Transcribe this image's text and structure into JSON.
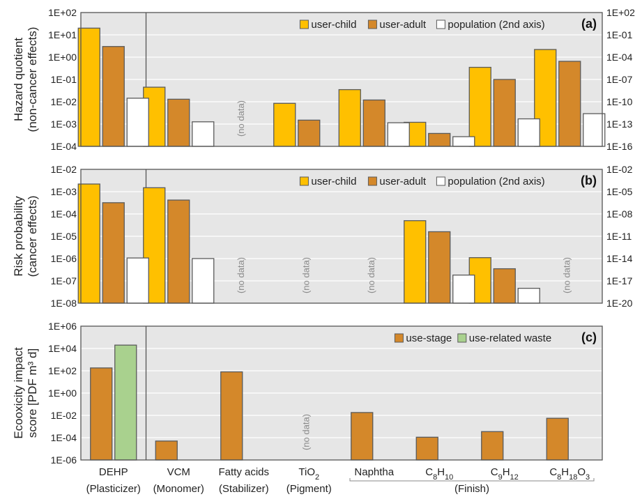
{
  "chart_data": [
    {
      "type": "bar",
      "panel_label": "(a)",
      "ylabel": [
        "Hazard quotient",
        "(non-cancer effects)"
      ],
      "y_scale": "log",
      "ylim": [
        0.0001,
        100
      ],
      "yticks": [
        "1E-04",
        "1E-03",
        "1E-02",
        "1E-01",
        "1E+00",
        "1E+01",
        "1E+02"
      ],
      "y2_scale": "log",
      "y2lim": [
        1e-16,
        100
      ],
      "y2ticks": [
        "1E-16",
        "1E-13",
        "1E-10",
        "1E-07",
        "1E-04",
        "1E-01",
        "1E+02"
      ],
      "grid": true,
      "legend_position": "top-right",
      "series": [
        {
          "name": "user-child",
          "color": "#FFC000",
          "axis": "left",
          "values": [
            20,
            0.045,
            null,
            0.0085,
            0.035,
            0.0012,
            0.35,
            2.2
          ]
        },
        {
          "name": "user-adult",
          "color": "#D4882A",
          "axis": "left",
          "values": [
            3,
            0.013,
            null,
            0.0015,
            0.012,
            0.00038,
            0.1,
            0.65
          ]
        },
        {
          "name": "population (2nd axis)",
          "color": "#FFFFFF",
          "axis": "right",
          "values": [
            3e-10,
            2e-13,
            null,
            null,
            1.5e-13,
            2e-15,
            5e-13,
            2.5e-12
          ]
        }
      ],
      "no_data": [
        2
      ]
    },
    {
      "type": "bar",
      "panel_label": "(b)",
      "ylabel": [
        "Risk probability",
        "(cancer effects)"
      ],
      "y_scale": "log",
      "ylim": [
        1e-08,
        0.01
      ],
      "yticks": [
        "1E-08",
        "1E-07",
        "1E-06",
        "1E-05",
        "1E-04",
        "1E-03",
        "1E-02"
      ],
      "y2_scale": "log",
      "y2lim": [
        1e-20,
        0.01
      ],
      "y2ticks": [
        "1E-20",
        "1E-17",
        "1E-14",
        "1E-11",
        "1E-08",
        "1E-05",
        "1E-02"
      ],
      "grid": true,
      "legend_position": "top-right",
      "series": [
        {
          "name": "user-child",
          "color": "#FFC000",
          "axis": "left",
          "values": [
            0.0022,
            0.0015,
            null,
            null,
            null,
            5e-05,
            1.1e-06,
            null
          ]
        },
        {
          "name": "user-adult",
          "color": "#D4882A",
          "axis": "left",
          "values": [
            0.00032,
            0.00042,
            null,
            null,
            null,
            1.6e-05,
            3.5e-07,
            null
          ]
        },
        {
          "name": "population (2nd axis)",
          "color": "#FFFFFF",
          "axis": "right",
          "values": [
            1.2e-14,
            1e-14,
            null,
            null,
            null,
            6e-17,
            1e-18,
            null
          ]
        }
      ],
      "no_data": [
        2,
        3,
        4,
        7
      ]
    },
    {
      "type": "bar",
      "panel_label": "(c)",
      "ylabel": [
        "Ecooxicity impact",
        "score [PDF m³ d]"
      ],
      "y_scale": "log",
      "ylim": [
        1e-06,
        1000000
      ],
      "yticks": [
        "1E-06",
        "1E-04",
        "1E-02",
        "1E+00",
        "1E+02",
        "1E+04",
        "1E+06"
      ],
      "grid": true,
      "legend_position": "top-right",
      "series": [
        {
          "name": "use-stage",
          "color": "#D4882A",
          "axis": "left",
          "values": [
            180,
            5e-05,
            80,
            null,
            0.018,
            0.00011,
            0.00035,
            0.0055
          ]
        },
        {
          "name": "use-related waste",
          "color": "#A9D18E",
          "axis": "left",
          "values": [
            20000,
            null,
            null,
            null,
            null,
            null,
            null,
            null
          ]
        }
      ],
      "no_data": [
        3
      ]
    }
  ],
  "categories": [
    {
      "name": "DEHP",
      "sub": "",
      "role": "(Plasticizer)"
    },
    {
      "name": "VCM",
      "sub": "",
      "role": "(Monomer)"
    },
    {
      "name": "Fatty acids",
      "sub": "",
      "role": "(Stabilizer)"
    },
    {
      "name": "TiO",
      "sub": "2",
      "role": "(Pigment)"
    },
    {
      "name": "Naphtha",
      "sub": "",
      "role": ""
    },
    {
      "name": "C8H10",
      "sub": "",
      "role": ""
    },
    {
      "name": "C9H12",
      "sub": "",
      "role": ""
    },
    {
      "name": "C8H18O3",
      "sub": "",
      "role": ""
    }
  ],
  "formula_labels": {
    "c8h10": [
      "C",
      "8",
      "H",
      "10"
    ],
    "c9h12": [
      "C",
      "9",
      "H",
      "12"
    ],
    "c8h18o3": [
      "C",
      "8",
      "H",
      "18",
      "O",
      "3"
    ]
  },
  "finish_group_label": "(Finish)",
  "no_data_label": "(no data)"
}
